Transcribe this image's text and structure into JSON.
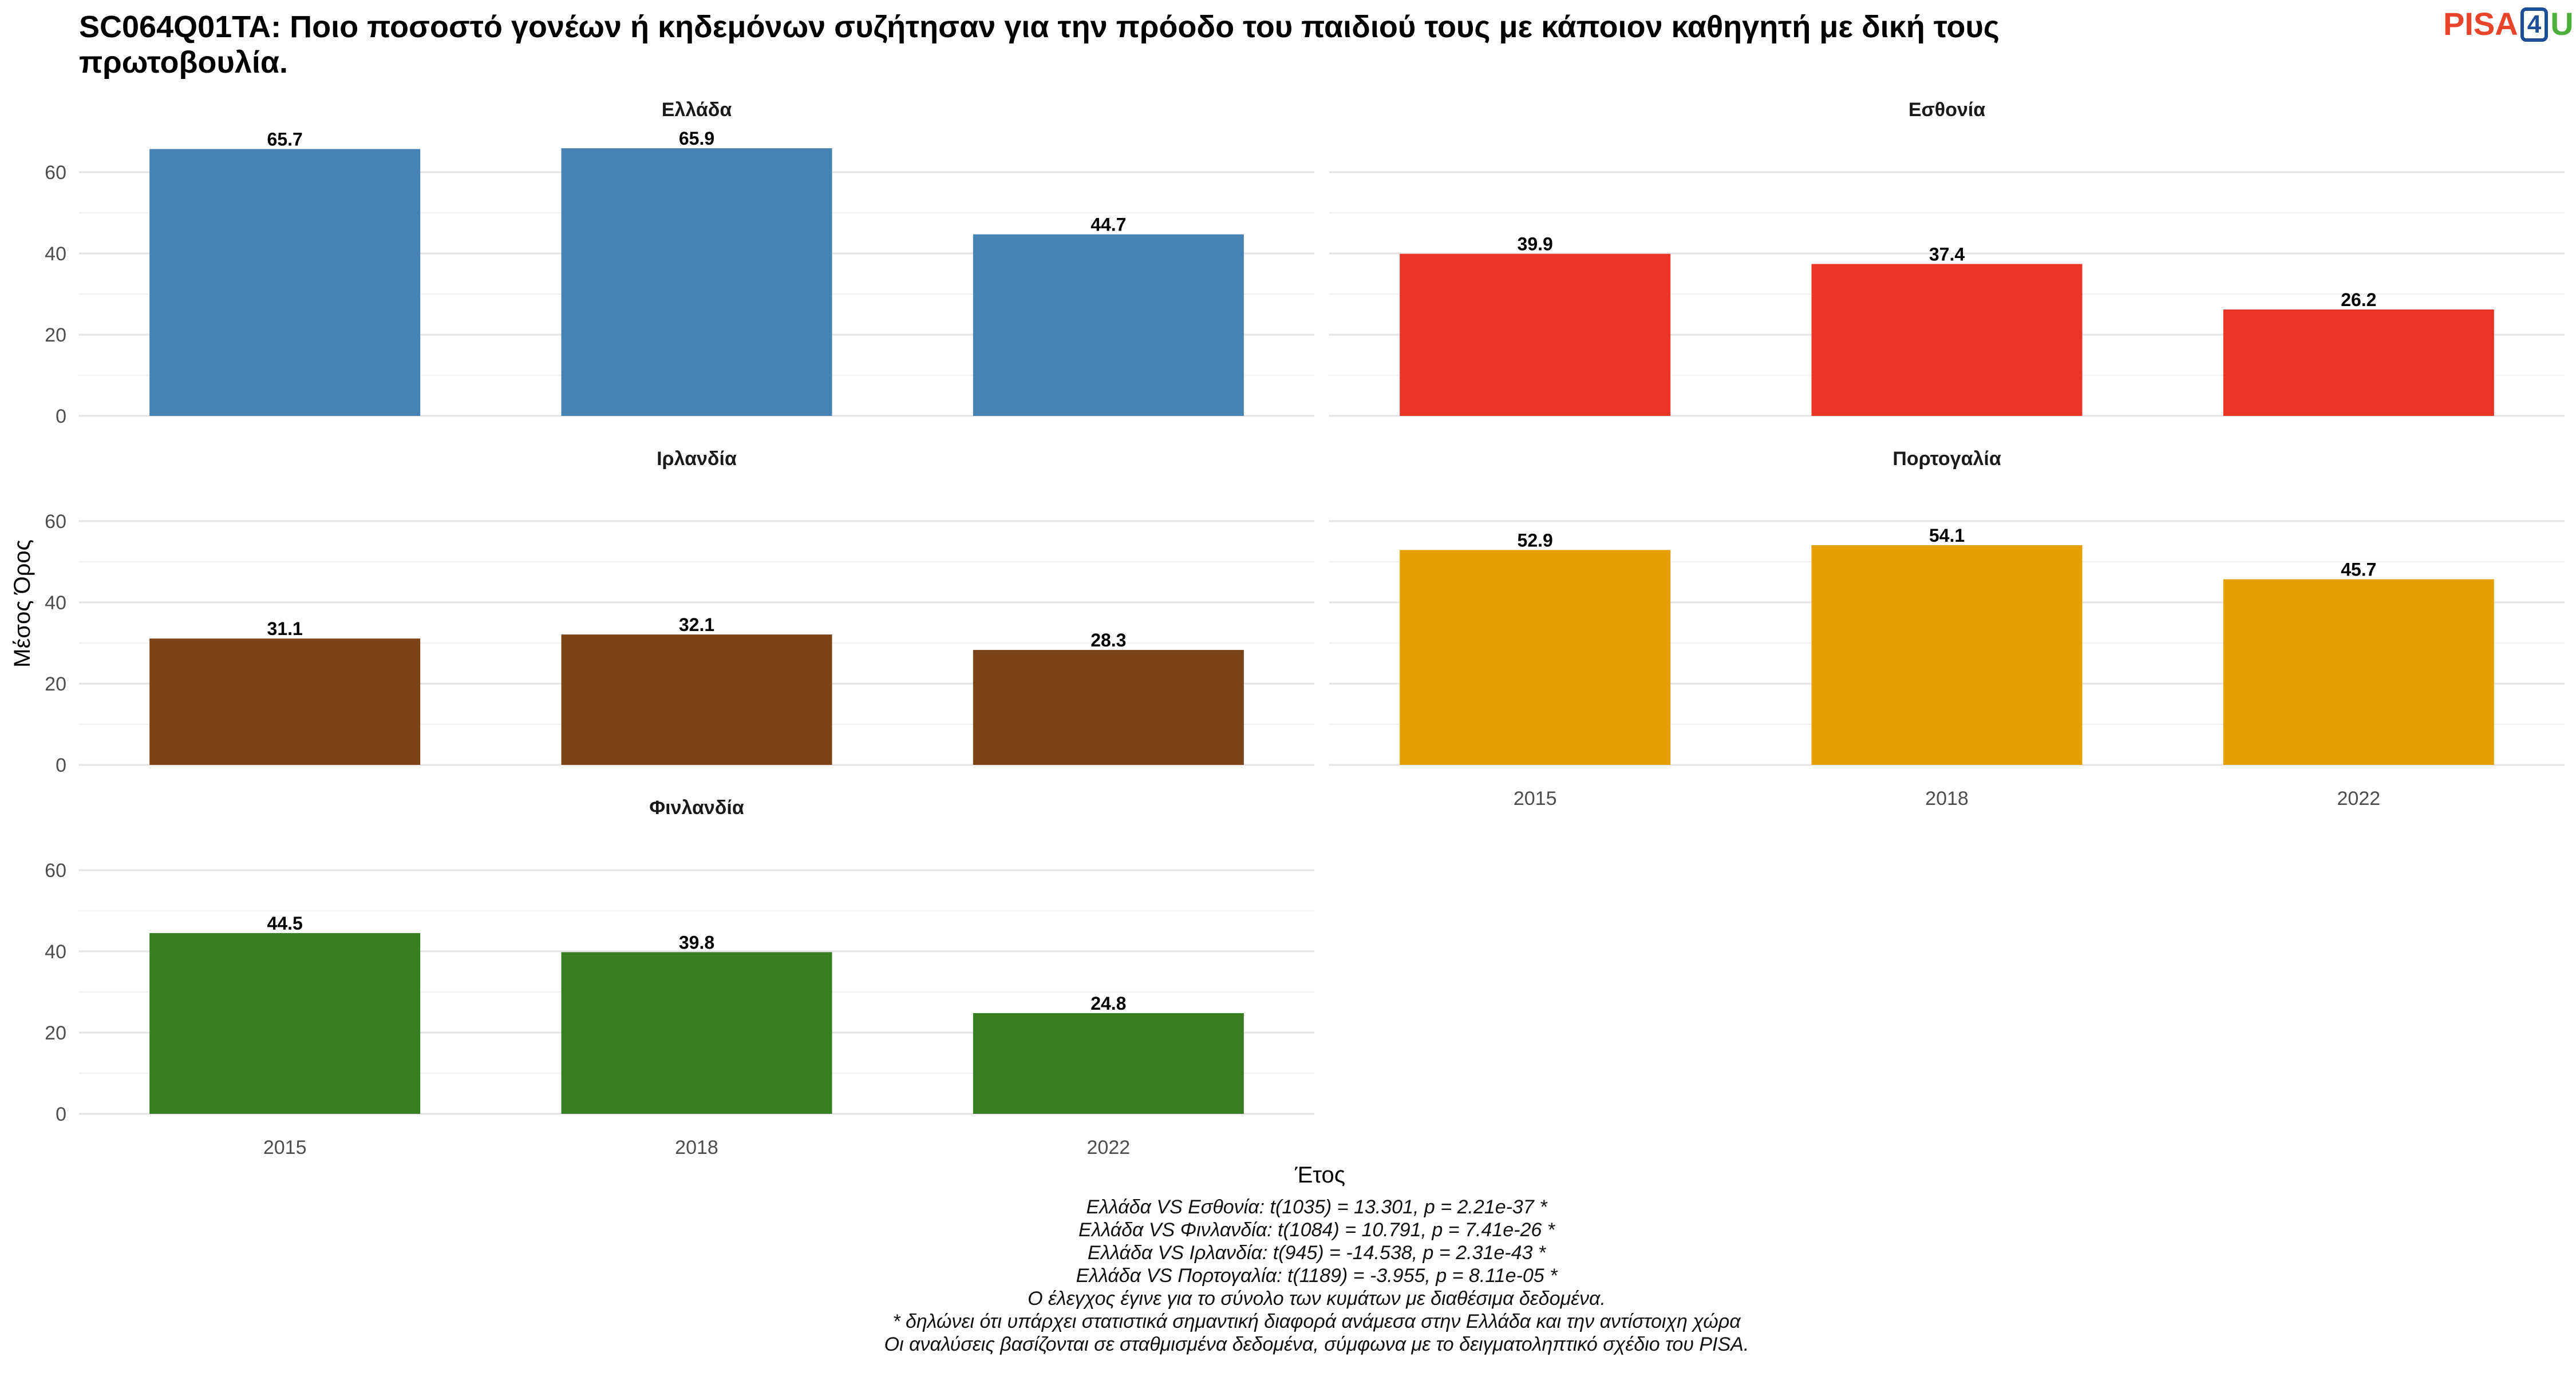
{
  "title": "SC064Q01TA: Ποιο ποσοστό γονέων ή κηδεμόνων συζήτησαν για την πρόοδο του παιδιού τους με κάποιον καθηγητή με δική τους πρωτοβουλία.",
  "logo": {
    "pisa": "PISA",
    "four": "4",
    "u": "U"
  },
  "chart_data": {
    "type": "bar",
    "xlabel": "Έτος",
    "ylabel": "Μέσος Όρος",
    "ylim": [
      0,
      70
    ],
    "yticks": [
      0,
      20,
      40,
      60
    ],
    "grid": true,
    "categories": [
      "2015",
      "2018",
      "2022"
    ],
    "panels": [
      {
        "name": "Ελλάδα",
        "color": "#4682b4",
        "values": [
          65.7,
          65.9,
          44.7
        ]
      },
      {
        "name": "Εσθονία",
        "color": "#ea3426",
        "values": [
          39.9,
          37.4,
          26.2
        ]
      },
      {
        "name": "Ιρλανδία",
        "color": "#7b4418",
        "values": [
          31.1,
          32.1,
          28.3
        ]
      },
      {
        "name": "Πορτογαλία",
        "color": "#e5a000",
        "values": [
          52.9,
          54.1,
          45.7
        ]
      },
      {
        "name": "Φινλανδία",
        "color": "#377e22",
        "values": [
          44.5,
          39.8,
          24.8
        ]
      }
    ]
  },
  "footnotes": [
    "Ελλάδα VS Εσθονία: t(1035) = 13.301, p = 2.21e-37 *",
    "Ελλάδα VS Φινλανδία: t(1084) = 10.791, p = 7.41e-26 *",
    "Ελλάδα VS Ιρλανδία: t(945) = -14.538, p = 2.31e-43 *",
    "Ελλάδα VS Πορτογαλία: t(1189) = -3.955, p = 8.11e-05 *",
    "Ο έλεγχος έγινε για το σύνολο των κυμάτων με διαθέσιμα δεδομένα.",
    "* δηλώνει ότι υπάρχει στατιστικά σημαντική διαφορά ανάμεσα στην Ελλάδα και την αντίστοιχη χώρα",
    "Οι αναλύσεις βασίζονται σε σταθμισμένα δεδομένα, σύμφωνα με το δειγματοληπτικό σχέδιο του PISA."
  ]
}
